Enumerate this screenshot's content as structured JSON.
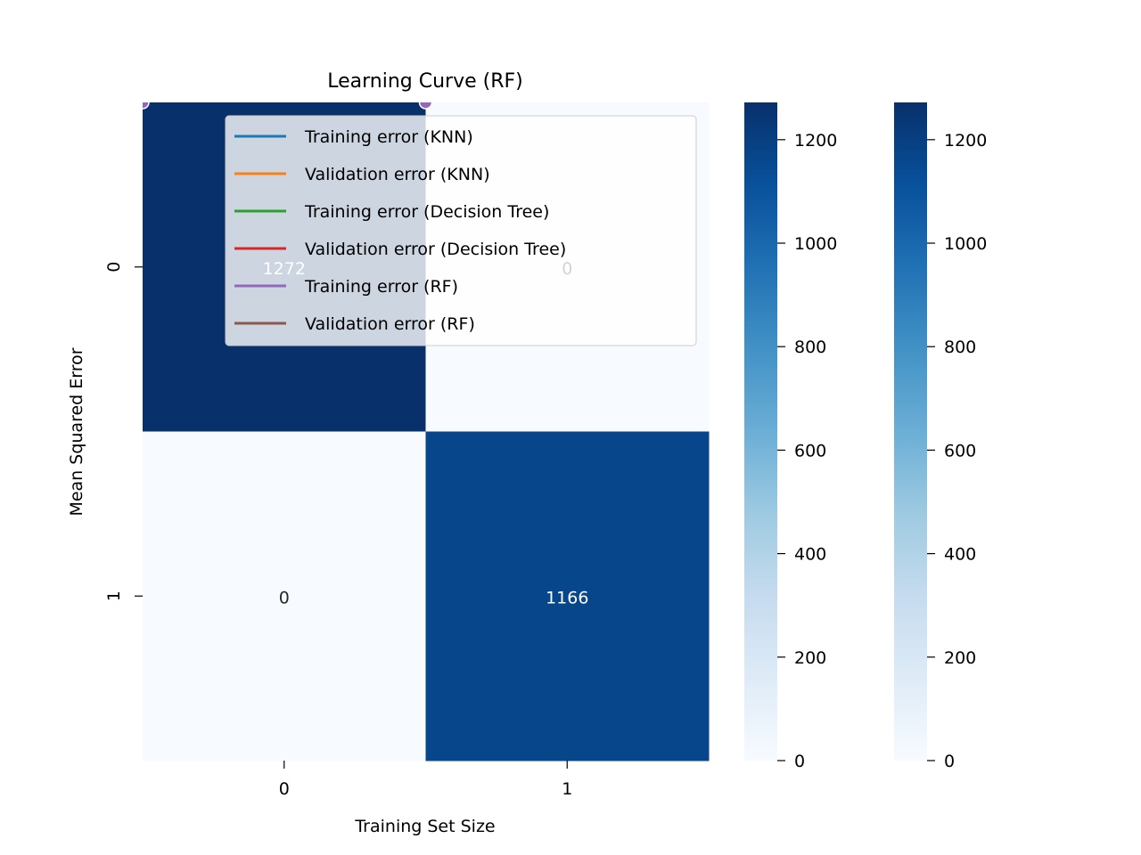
{
  "chart_data": {
    "type": "heatmap",
    "title": "Learning Curve (RF)",
    "xlabel": "Training Set Size",
    "ylabel": "Mean Squared Error",
    "x_categories": [
      "0",
      "1"
    ],
    "y_categories": [
      "0",
      "1"
    ],
    "values": [
      [
        1272,
        0
      ],
      [
        0,
        1166
      ]
    ],
    "value_labels": [
      [
        "1272",
        "0"
      ],
      [
        "0",
        "1166"
      ]
    ],
    "colormap": "Blues",
    "color_range": [
      0,
      1272
    ],
    "colorbars": [
      {
        "ticks": [
          0,
          200,
          400,
          600,
          800,
          1000,
          1200
        ],
        "tick_labels": [
          "0",
          "200",
          "400",
          "600",
          "800",
          "1000",
          "1200"
        ]
      },
      {
        "ticks": [
          0,
          200,
          400,
          600,
          800,
          1000,
          1200
        ],
        "tick_labels": [
          "0",
          "200",
          "400",
          "600",
          "800",
          "1000",
          "1200"
        ]
      }
    ],
    "legend": {
      "placement": "upper-center",
      "entries": [
        {
          "label": "Training error (KNN)",
          "color": "#1f77b4"
        },
        {
          "label": "Validation error (KNN)",
          "color": "#ff7f0e"
        },
        {
          "label": "Training error (Decision Tree)",
          "color": "#2ca02c"
        },
        {
          "label": "Validation error (Decision Tree)",
          "color": "#d62728"
        },
        {
          "label": "Training error (RF)",
          "color": "#9467bd"
        },
        {
          "label": "Validation error (RF)",
          "color": "#8c564b"
        }
      ]
    },
    "marker_series": {
      "name": "Training error (RF)",
      "color": "#9467bd",
      "points": [
        {
          "x": 0,
          "y": 0
        },
        {
          "x": 1,
          "y": 0
        }
      ]
    }
  }
}
